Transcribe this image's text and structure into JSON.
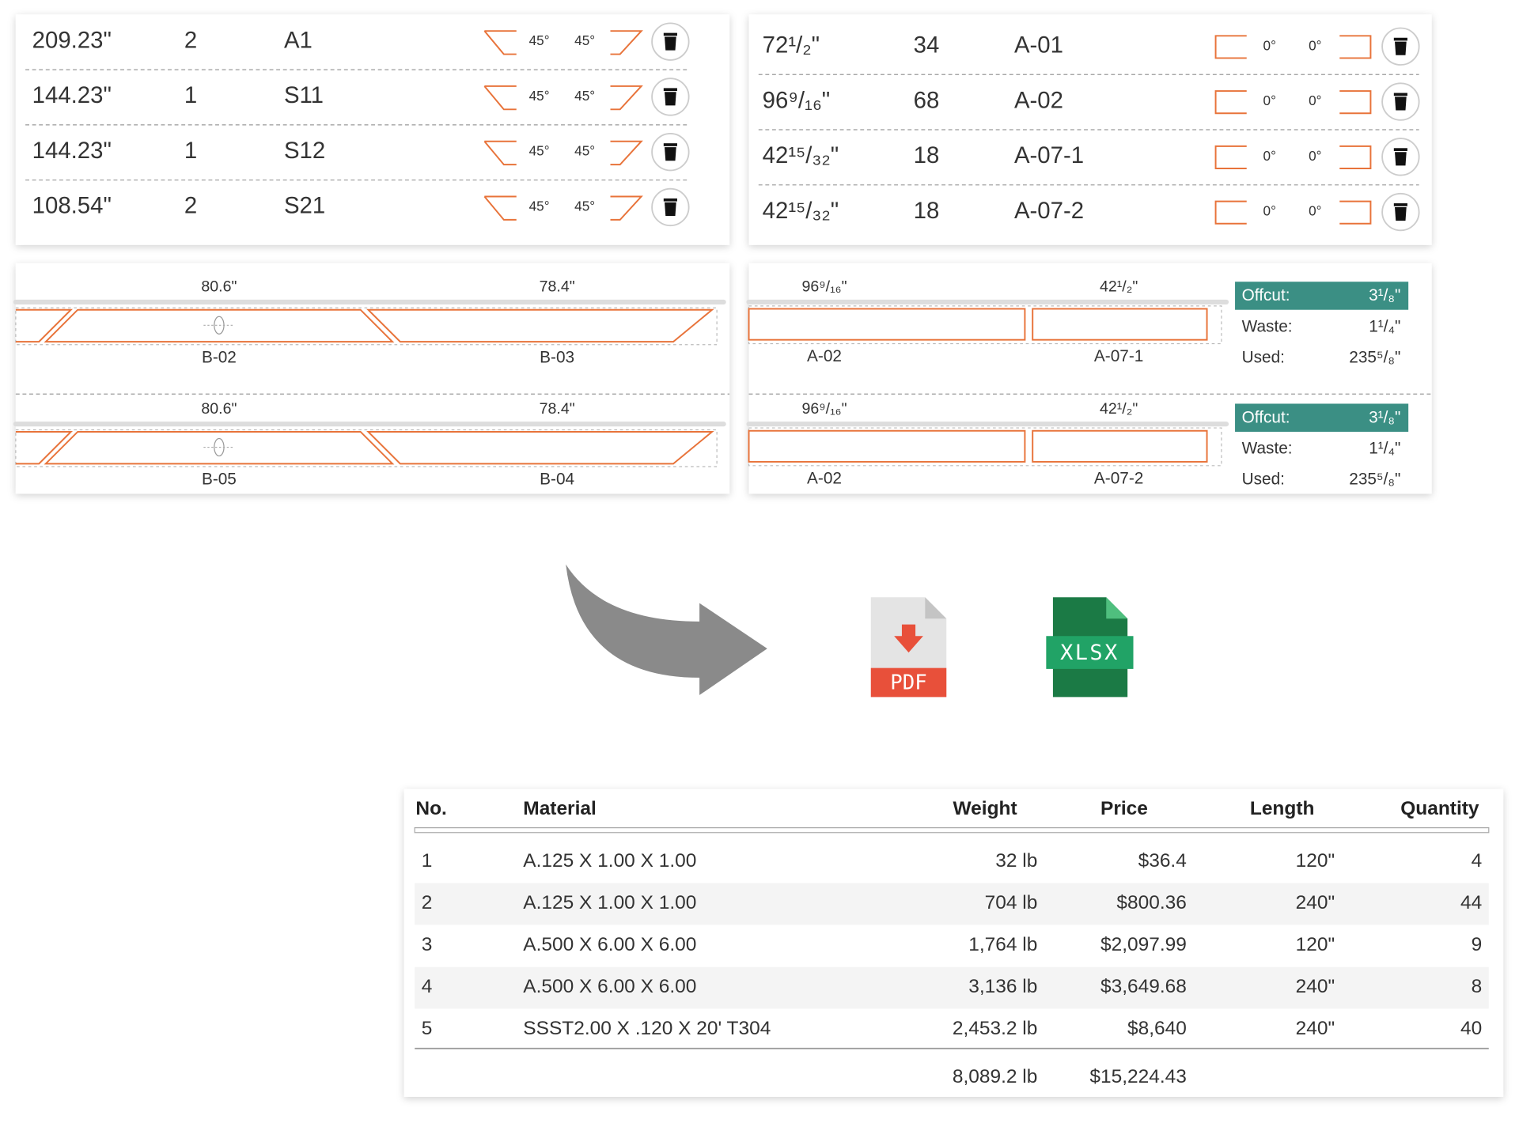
{
  "cut_list_left": {
    "rows": [
      {
        "length": "209.23\"",
        "qty": "2",
        "label": "A1",
        "angle_left": "45°",
        "angle_right": "45°"
      },
      {
        "length": "144.23\"",
        "qty": "1",
        "label": "S11",
        "angle_left": "45°",
        "angle_right": "45°"
      },
      {
        "length": "144.23\"",
        "qty": "1",
        "label": "S12",
        "angle_left": "45°",
        "angle_right": "45°"
      },
      {
        "length": "108.54\"",
        "qty": "2",
        "label": "S21",
        "angle_left": "45°",
        "angle_right": "45°"
      }
    ]
  },
  "cut_list_right": {
    "rows": [
      {
        "length": "72¹/₂\"",
        "qty": "34",
        "label": "A-01",
        "angle_left": "0°",
        "angle_right": "0°"
      },
      {
        "length": "96⁹/₁₆\"",
        "qty": "68",
        "label": "A-02",
        "angle_left": "0°",
        "angle_right": "0°"
      },
      {
        "length": "42¹⁵/₃₂\"",
        "qty": "18",
        "label": "A-07-1",
        "angle_left": "0°",
        "angle_right": "0°"
      },
      {
        "length": "42¹⁵/₃₂\"",
        "qty": "18",
        "label": "A-07-2",
        "angle_left": "0°",
        "angle_right": "0°"
      }
    ]
  },
  "layouts_left": {
    "bars": [
      {
        "dims": [
          "80.6\"",
          "78.4\""
        ],
        "parts": [
          "B-02",
          "B-03"
        ]
      },
      {
        "dims": [
          "80.6\"",
          "78.4\""
        ],
        "parts": [
          "B-05",
          "B-04"
        ]
      }
    ]
  },
  "layouts_right": {
    "bars": [
      {
        "dims": [
          "96⁹/₁₆\"",
          "42¹/₂\""
        ],
        "parts": [
          "A-02",
          "A-07-1"
        ],
        "summary": {
          "offcut_label": "Offcut:",
          "offcut": "3¹/₈\"",
          "waste_label": "Waste:",
          "waste": "1¹/₄\"",
          "used_label": "Used:",
          "used": "235⁵/₈\""
        }
      },
      {
        "dims": [
          "96⁹/₁₆\"",
          "42¹/₂\""
        ],
        "parts": [
          "A-02",
          "A-07-2"
        ],
        "summary": {
          "offcut_label": "Offcut:",
          "offcut": "3¹/₈\"",
          "waste_label": "Waste:",
          "waste": "1¹/₄\"",
          "used_label": "Used:",
          "used": "235⁵/₈\""
        }
      }
    ]
  },
  "icons": {
    "pdf": "PDF",
    "xlsx": "XLSX"
  },
  "table": {
    "header": [
      "No.",
      "Material",
      "Weight",
      "Price",
      "Length",
      "Quantity"
    ],
    "rows": [
      [
        "1",
        "A.125 X 1.00 X 1.00",
        "32 lb",
        "$36.4",
        "120\"",
        "4"
      ],
      [
        "2",
        "A.125 X 1.00 X 1.00",
        "704 lb",
        "$800.36",
        "240\"",
        "44"
      ],
      [
        "3",
        "A.500 X 6.00 X 6.00",
        "1,764 lb",
        "$2,097.99",
        "120\"",
        "9"
      ],
      [
        "4",
        "A.500 X 6.00 X 6.00",
        "3,136 lb",
        "$3,649.68",
        "240\"",
        "8"
      ],
      [
        "5",
        "SSST2.00 X .120 X 20' T304",
        "2,453.2 lb",
        "$8,640",
        "240\"",
        "40"
      ]
    ],
    "totals": {
      "weight": "8,089.2 lb",
      "price": "$15,224.43"
    }
  }
}
